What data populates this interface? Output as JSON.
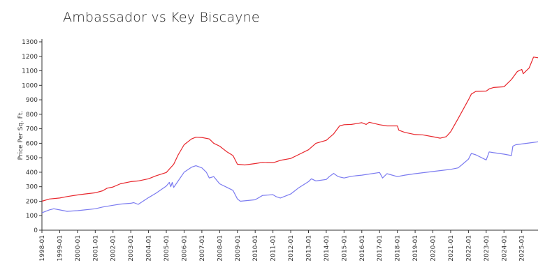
{
  "chart_data": {
    "type": "line",
    "title": "Ambassador vs Key Biscayne",
    "xlabel": "",
    "ylabel": "Price Per Sq. Ft.",
    "ylim": [
      0,
      1300
    ],
    "yticks": [
      0,
      100,
      200,
      300,
      400,
      500,
      600,
      700,
      800,
      900,
      1000,
      1100,
      1200,
      1300
    ],
    "xticks": [
      "1998-01",
      "1999-01",
      "2000-01",
      "2001-01",
      "2002-01",
      "2003-01",
      "2004-01",
      "2005-01",
      "2006-01",
      "2007-01",
      "2008-01",
      "2009-01",
      "2010-01",
      "2011-01",
      "2012-01",
      "2013-01",
      "2014-01",
      "2015-01",
      "2016-01",
      "2017-01",
      "2018-01",
      "2019-01",
      "2020-01",
      "2021-01",
      "2022-01",
      "2023-01",
      "2024-01",
      "2025-01"
    ],
    "xlim": [
      "1998-01",
      "2025-12"
    ],
    "grid": false,
    "legend": "none",
    "series": [
      {
        "color": "#e8262c",
        "points": [
          [
            "1998-01",
            200
          ],
          [
            "1998-06",
            215
          ],
          [
            "1999-01",
            222
          ],
          [
            "1999-06",
            232
          ],
          [
            "2000-01",
            243
          ],
          [
            "2000-06",
            250
          ],
          [
            "2001-01",
            258
          ],
          [
            "2001-06",
            272
          ],
          [
            "2001-09",
            290
          ],
          [
            "2002-01",
            298
          ],
          [
            "2002-06",
            320
          ],
          [
            "2003-01",
            335
          ],
          [
            "2003-06",
            340
          ],
          [
            "2004-01",
            355
          ],
          [
            "2004-06",
            375
          ],
          [
            "2005-01",
            398
          ],
          [
            "2005-06",
            455
          ],
          [
            "2005-09",
            520
          ],
          [
            "2006-01",
            590
          ],
          [
            "2006-06",
            630
          ],
          [
            "2006-09",
            642
          ],
          [
            "2007-01",
            640
          ],
          [
            "2007-06",
            630
          ],
          [
            "2007-09",
            600
          ],
          [
            "2008-01",
            580
          ],
          [
            "2008-06",
            540
          ],
          [
            "2008-10",
            515
          ],
          [
            "2009-01",
            455
          ],
          [
            "2009-06",
            450
          ],
          [
            "2010-01",
            460
          ],
          [
            "2010-06",
            468
          ],
          [
            "2011-01",
            465
          ],
          [
            "2011-06",
            482
          ],
          [
            "2012-01",
            495
          ],
          [
            "2012-06",
            520
          ],
          [
            "2013-01",
            555
          ],
          [
            "2013-06",
            600
          ],
          [
            "2014-01",
            620
          ],
          [
            "2014-06",
            665
          ],
          [
            "2014-10",
            720
          ],
          [
            "2015-01",
            728
          ],
          [
            "2015-06",
            730
          ],
          [
            "2016-01",
            742
          ],
          [
            "2016-04",
            730
          ],
          [
            "2016-06",
            745
          ],
          [
            "2017-01",
            728
          ],
          [
            "2017-06",
            720
          ],
          [
            "2018-01",
            720
          ],
          [
            "2018-02",
            690
          ],
          [
            "2018-06",
            675
          ],
          [
            "2019-01",
            660
          ],
          [
            "2019-06",
            658
          ],
          [
            "2020-01",
            645
          ],
          [
            "2020-06",
            635
          ],
          [
            "2020-10",
            645
          ],
          [
            "2021-01",
            680
          ],
          [
            "2021-06",
            770
          ],
          [
            "2022-01",
            900
          ],
          [
            "2022-03",
            940
          ],
          [
            "2022-06",
            958
          ],
          [
            "2023-01",
            960
          ],
          [
            "2023-03",
            975
          ],
          [
            "2023-06",
            985
          ],
          [
            "2024-01",
            990
          ],
          [
            "2024-06",
            1040
          ],
          [
            "2024-10",
            1095
          ],
          [
            "2025-01",
            1110
          ],
          [
            "2025-02",
            1080
          ],
          [
            "2025-06",
            1120
          ],
          [
            "2025-09",
            1195
          ],
          [
            "2025-12",
            1190
          ]
        ]
      },
      {
        "color": "#7b7bf0",
        "points": [
          [
            "1998-01",
            120
          ],
          [
            "1998-06",
            140
          ],
          [
            "1998-09",
            148
          ],
          [
            "1999-01",
            140
          ],
          [
            "1999-06",
            130
          ],
          [
            "2000-01",
            135
          ],
          [
            "2000-06",
            140
          ],
          [
            "2001-01",
            148
          ],
          [
            "2001-06",
            160
          ],
          [
            "2002-01",
            172
          ],
          [
            "2002-06",
            180
          ],
          [
            "2003-01",
            186
          ],
          [
            "2003-03",
            190
          ],
          [
            "2003-06",
            178
          ],
          [
            "2004-01",
            225
          ],
          [
            "2004-06",
            255
          ],
          [
            "2005-01",
            305
          ],
          [
            "2005-03",
            330
          ],
          [
            "2005-04",
            300
          ],
          [
            "2005-05",
            330
          ],
          [
            "2005-06",
            295
          ],
          [
            "2005-09",
            340
          ],
          [
            "2006-01",
            400
          ],
          [
            "2006-06",
            435
          ],
          [
            "2006-09",
            445
          ],
          [
            "2007-01",
            430
          ],
          [
            "2007-04",
            400
          ],
          [
            "2007-06",
            360
          ],
          [
            "2007-09",
            370
          ],
          [
            "2008-01",
            320
          ],
          [
            "2008-06",
            295
          ],
          [
            "2008-10",
            275
          ],
          [
            "2009-01",
            215
          ],
          [
            "2009-03",
            200
          ],
          [
            "2010-01",
            210
          ],
          [
            "2010-06",
            240
          ],
          [
            "2011-01",
            245
          ],
          [
            "2011-03",
            232
          ],
          [
            "2011-06",
            222
          ],
          [
            "2012-01",
            250
          ],
          [
            "2012-06",
            290
          ],
          [
            "2013-01",
            335
          ],
          [
            "2013-03",
            355
          ],
          [
            "2013-06",
            340
          ],
          [
            "2014-01",
            350
          ],
          [
            "2014-03",
            370
          ],
          [
            "2014-06",
            392
          ],
          [
            "2014-09",
            370
          ],
          [
            "2015-01",
            360
          ],
          [
            "2015-06",
            372
          ],
          [
            "2016-01",
            380
          ],
          [
            "2017-01",
            398
          ],
          [
            "2017-03",
            360
          ],
          [
            "2017-06",
            390
          ],
          [
            "2018-01",
            370
          ],
          [
            "2018-06",
            380
          ],
          [
            "2019-01",
            390
          ],
          [
            "2020-01",
            405
          ],
          [
            "2021-01",
            420
          ],
          [
            "2021-06",
            430
          ],
          [
            "2021-09",
            455
          ],
          [
            "2022-01",
            490
          ],
          [
            "2022-03",
            530
          ],
          [
            "2022-06",
            520
          ],
          [
            "2023-01",
            485
          ],
          [
            "2023-03",
            540
          ],
          [
            "2023-06",
            535
          ],
          [
            "2024-01",
            525
          ],
          [
            "2024-06",
            515
          ],
          [
            "2024-07",
            580
          ],
          [
            "2024-09",
            590
          ],
          [
            "2025-06",
            602
          ],
          [
            "2025-12",
            610
          ]
        ]
      }
    ]
  }
}
